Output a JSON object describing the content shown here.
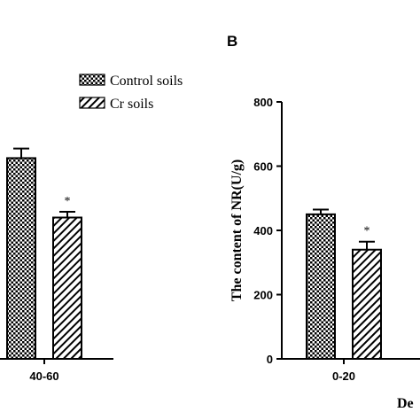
{
  "legend": {
    "items": [
      {
        "label": "Control soils",
        "pattern": "crosshatch"
      },
      {
        "label": "Cr soils",
        "pattern": "diagonal"
      }
    ]
  },
  "chart_data": [
    {
      "type": "bar",
      "panel": "",
      "categories": [
        "40-60"
      ],
      "series": [
        {
          "name": "Control soils",
          "values": [
            625
          ],
          "errors": [
            30
          ]
        },
        {
          "name": "Cr soils",
          "values": [
            440
          ],
          "errors": [
            18
          ]
        }
      ],
      "annotations": [
        {
          "category": "40-60",
          "series": "Cr soils",
          "text": "*"
        }
      ],
      "ylim": [
        0,
        800
      ]
    },
    {
      "type": "bar",
      "panel": "B",
      "categories": [
        "0-20"
      ],
      "series": [
        {
          "name": "Control soils",
          "values": [
            450
          ],
          "errors": [
            15
          ]
        },
        {
          "name": "Cr soils",
          "values": [
            340
          ],
          "errors": [
            25
          ]
        }
      ],
      "annotations": [
        {
          "category": "0-20",
          "series": "Cr soils",
          "text": "*"
        }
      ],
      "ylabel": "The content of NR(U/g)",
      "xlabel": "De",
      "yticks": [
        "0",
        "200",
        "400",
        "600",
        "800"
      ],
      "ylim": [
        0,
        800
      ]
    }
  ]
}
